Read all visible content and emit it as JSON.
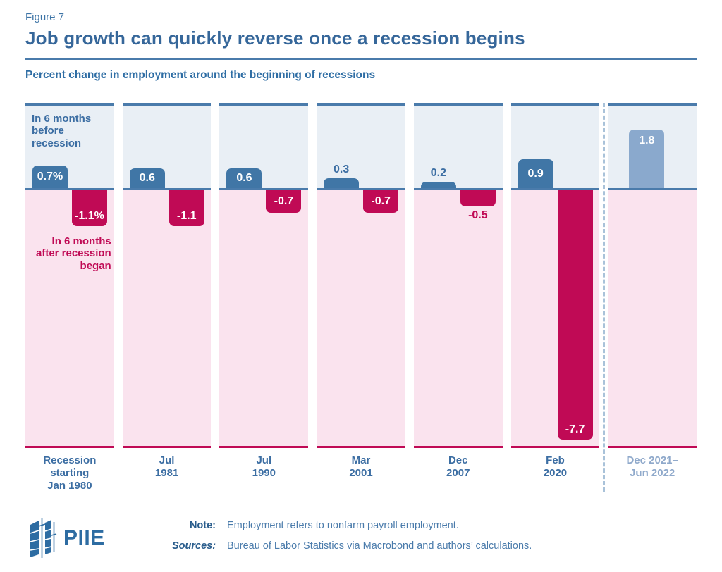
{
  "figure_label": "Figure 7",
  "title": "Job growth can quickly reverse once a recession begins",
  "subtitle": "Percent change in employment around the beginning of recessions",
  "annotations": {
    "before": "In 6 months\nbefore\nrecession",
    "after": "In 6 months\nafter recession\nbegan"
  },
  "chart_data": {
    "type": "bar",
    "categories": [
      "Recession starting Jan 1980",
      "Jul 1981",
      "Jul 1990",
      "Mar 2001",
      "Dec 2007",
      "Feb 2020",
      "Dec 2021–Jun 2022"
    ],
    "series": [
      {
        "name": "In 6 months before recession",
        "values": [
          0.7,
          0.6,
          0.6,
          0.3,
          0.2,
          0.9,
          1.8
        ]
      },
      {
        "name": "In 6 months after recession began",
        "values": [
          -1.1,
          -1.1,
          -0.7,
          -0.7,
          -0.5,
          -7.7,
          null
        ]
      }
    ],
    "title": "Job growth can quickly reverse once a recession begins",
    "xlabel": "",
    "ylabel": "Percent change in employment",
    "unit": "percent",
    "ylim": [
      -7.9,
      2.6
    ],
    "grid": false,
    "legend_position": "annotations inside first panel",
    "separator": "dashed line before Dec 2021–Jun 2022 panel"
  },
  "panels": [
    {
      "label": "Recession\nstarting\nJan 1980",
      "pos_label": "0.7%",
      "neg_label": "-1.1%"
    },
    {
      "label": "Jul\n1981",
      "pos_label": "0.6",
      "neg_label": "-1.1"
    },
    {
      "label": "Jul\n1990",
      "pos_label": "0.6",
      "neg_label": "-0.7"
    },
    {
      "label": "Mar\n2001",
      "pos_label": "0.3",
      "neg_label": "-0.7"
    },
    {
      "label": "Dec\n2007",
      "pos_label": "0.2",
      "neg_label": "-0.5"
    },
    {
      "label": "Feb\n2020",
      "pos_label": "0.9",
      "neg_label": "-7.7"
    },
    {
      "label": "Dec 2021–\nJun 2022",
      "pos_label": "1.8",
      "neg_label": ""
    }
  ],
  "footer": {
    "logo_text": "PIIE",
    "note_label": "Note:",
    "note": "Employment refers to nonfarm payroll employment.",
    "sources_label": "Sources:",
    "sources": "Bureau of Labor Statistics via Macrobond and authors’ calculations."
  },
  "colors": {
    "before_bar": "#4076a6",
    "after_bar": "#c00a55",
    "latest_bar": "#8aa9cd",
    "pre_region_bg": "#e9eff5",
    "post_region_bg": "#fae3ee",
    "zero_line": "#4a7bab",
    "title_text": "#36679a"
  }
}
